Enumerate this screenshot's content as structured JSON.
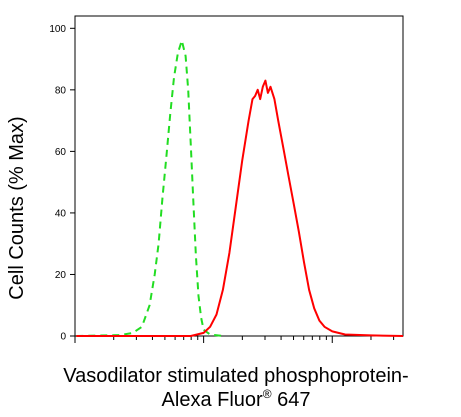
{
  "chart_data": {
    "type": "line",
    "xscale": "log",
    "ylabel": "Cell Counts (% Max)",
    "xlabel_line1": "Vasodilator stimulated phosphoprotein-",
    "xlabel_line2_text": "Alexa Fluor",
    "xlabel_line2_sup": "®",
    "xlabel_line2_suffix": "647",
    "xlim": [
      -1.0,
      1.55
    ],
    "ylim": [
      0,
      104
    ],
    "yticks": [
      {
        "value": 0,
        "label": "0"
      },
      {
        "value": 20,
        "label": "20"
      },
      {
        "value": 40,
        "label": "40"
      },
      {
        "value": 60,
        "label": "60"
      },
      {
        "value": 80,
        "label": "80"
      },
      {
        "value": 100,
        "label": "100"
      }
    ],
    "xmajor": [
      -1,
      0,
      1
    ],
    "series": [
      {
        "color": "#22dd22",
        "dash": true,
        "points": [
          [
            -0.99,
            0
          ],
          [
            -0.65,
            0.3
          ],
          [
            -0.55,
            1
          ],
          [
            -0.48,
            3
          ],
          [
            -0.42,
            10
          ],
          [
            -0.38,
            20
          ],
          [
            -0.35,
            30
          ],
          [
            -0.32,
            45
          ],
          [
            -0.29,
            58
          ],
          [
            -0.26,
            72
          ],
          [
            -0.23,
            84
          ],
          [
            -0.2,
            92
          ],
          [
            -0.17,
            96
          ],
          [
            -0.14,
            91
          ],
          [
            -0.12,
            80
          ],
          [
            -0.1,
            62
          ],
          [
            -0.08,
            44
          ],
          [
            -0.06,
            26
          ],
          [
            -0.04,
            13
          ],
          [
            -0.02,
            6
          ],
          [
            0.0,
            2
          ],
          [
            0.05,
            0.5
          ],
          [
            0.15,
            0
          ]
        ]
      },
      {
        "color": "#ff0000",
        "dash": false,
        "points": [
          [
            -0.99,
            0
          ],
          [
            -0.1,
            0
          ],
          [
            0.0,
            1
          ],
          [
            0.05,
            3
          ],
          [
            0.1,
            7
          ],
          [
            0.15,
            15
          ],
          [
            0.2,
            27
          ],
          [
            0.25,
            42
          ],
          [
            0.3,
            57
          ],
          [
            0.35,
            70
          ],
          [
            0.38,
            77
          ],
          [
            0.4,
            78
          ],
          [
            0.42,
            80
          ],
          [
            0.44,
            77
          ],
          [
            0.46,
            81
          ],
          [
            0.48,
            83
          ],
          [
            0.5,
            79
          ],
          [
            0.52,
            81
          ],
          [
            0.55,
            77
          ],
          [
            0.58,
            70
          ],
          [
            0.62,
            61
          ],
          [
            0.66,
            52
          ],
          [
            0.7,
            43
          ],
          [
            0.74,
            34
          ],
          [
            0.78,
            24
          ],
          [
            0.82,
            15
          ],
          [
            0.86,
            9
          ],
          [
            0.9,
            5
          ],
          [
            0.94,
            3
          ],
          [
            1.0,
            1.5
          ],
          [
            1.1,
            0.5
          ],
          [
            1.3,
            0.2
          ],
          [
            1.55,
            0
          ]
        ]
      }
    ]
  }
}
